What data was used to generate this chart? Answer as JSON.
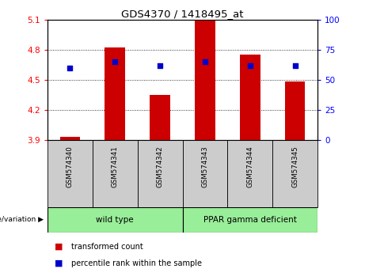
{
  "title": "GDS4370 / 1418495_at",
  "samples": [
    "GSM574340",
    "GSM574341",
    "GSM574342",
    "GSM574343",
    "GSM574344",
    "GSM574345"
  ],
  "red_bars": [
    3.93,
    4.82,
    4.35,
    5.1,
    4.75,
    4.48
  ],
  "blue_dots_pct": [
    60,
    65,
    62,
    65,
    62,
    62
  ],
  "ylim_left": [
    3.9,
    5.1
  ],
  "ylim_right": [
    0,
    100
  ],
  "yticks_left": [
    3.9,
    4.2,
    4.5,
    4.8,
    5.1
  ],
  "yticks_right": [
    0,
    25,
    50,
    75,
    100
  ],
  "bar_bottom": 3.9,
  "bar_color": "#cc0000",
  "dot_color": "#0000cc",
  "wild_type_indices": [
    0,
    1,
    2
  ],
  "ppar_indices": [
    3,
    4,
    5
  ],
  "wild_type_label": "wild type",
  "ppar_label": "PPAR gamma deficient",
  "group_bg_color": "#99ee99",
  "sample_bg_color": "#cccccc",
  "legend_red_label": "transformed count",
  "legend_blue_label": "percentile rank within the sample",
  "genotype_label": "genotype/variation"
}
